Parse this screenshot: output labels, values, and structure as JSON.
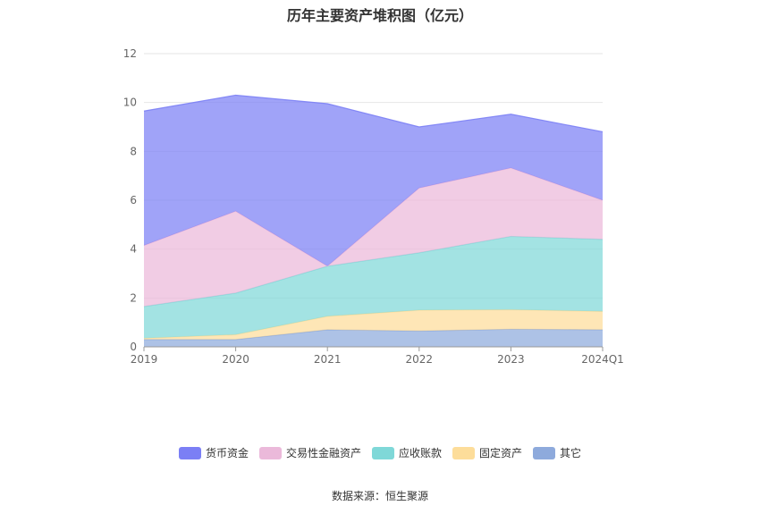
{
  "chart_data": {
    "type": "area",
    "stacked": true,
    "title": "历年主要资产堆积图（亿元）",
    "categories": [
      "2019",
      "2020",
      "2021",
      "2022",
      "2023",
      "2024Q1"
    ],
    "ylim": [
      0,
      12
    ],
    "yticks": [
      "0",
      "2",
      "4",
      "6",
      "8",
      "10",
      "12"
    ],
    "grid": true,
    "legend_position": "bottom",
    "series": [
      {
        "name": "其它",
        "color": "#8eaadc",
        "values": [
          0.3,
          0.3,
          0.7,
          0.65,
          0.72,
          0.7
        ]
      },
      {
        "name": "固定资产",
        "color": "#fddd9a",
        "values": [
          0.05,
          0.2,
          0.55,
          0.85,
          0.8,
          0.75
        ]
      },
      {
        "name": "应收账款",
        "color": "#7fd8d8",
        "values": [
          1.3,
          1.7,
          2.05,
          2.35,
          3.0,
          2.95
        ]
      },
      {
        "name": "交易性金融资产",
        "color": "#ebb9da",
        "values": [
          2.5,
          3.35,
          0.0,
          2.65,
          2.8,
          1.6
        ]
      },
      {
        "name": "货币资金",
        "color": "#7b7ff5",
        "values": [
          5.5,
          4.75,
          6.65,
          2.5,
          2.2,
          2.8
        ]
      }
    ],
    "source": "数据来源：恒生聚源"
  }
}
